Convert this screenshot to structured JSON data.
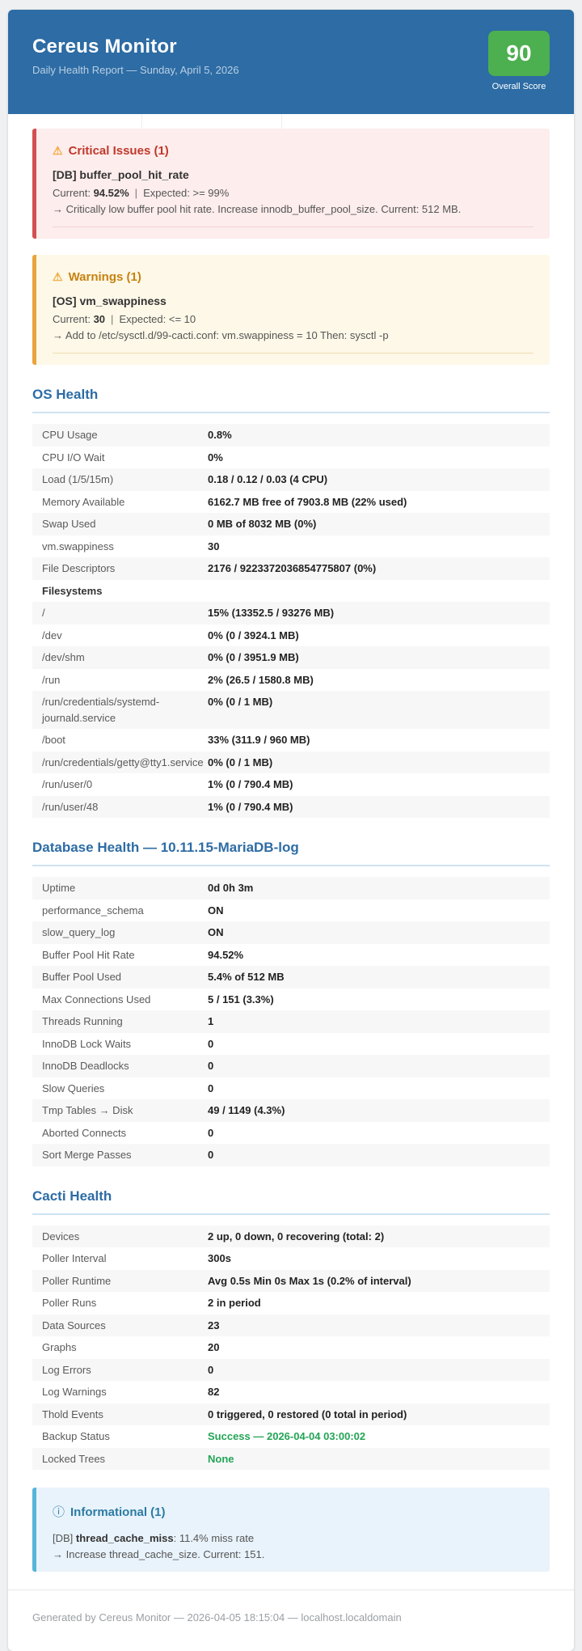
{
  "header": {
    "title": "Cereus Monitor",
    "subtitle": "Daily Health Report — Sunday, April 5, 2026",
    "score": "90",
    "score_label": "Overall Score"
  },
  "icons": {
    "warning_icon": "⚠",
    "info_icon": "ⓘ"
  },
  "critical": {
    "title": "Critical Issues (1)",
    "item_name": "[DB] buffer_pool_hit_rate",
    "current_label": "Current: ",
    "current_value": "94.52%",
    "separator": "|",
    "expected_text": "Expected: >= 99%",
    "detail": "→ Critically low buffer pool hit rate. Increase innodb_buffer_pool_size. Current: 512 MB."
  },
  "warning": {
    "title": "Warnings (1)",
    "item_name": "[OS] vm_swappiness",
    "current_label": "Current: ",
    "current_value": "30",
    "separator": "|",
    "expected_text": "Expected: <= 10",
    "detail": "→ Add to /etc/sysctl.d/99-cacti.conf: vm.swappiness = 10 Then: sysctl -p"
  },
  "info": {
    "title": "Informational (1)",
    "item_prefix": "[DB] ",
    "item_name": "thread_cache_miss",
    "item_rest": ": 11.4% miss rate",
    "detail": "→ Increase thread_cache_size. Current: 151."
  },
  "sections": [
    {
      "title": "OS Health",
      "rows": [
        {
          "label": "CPU Usage",
          "value": "0.8%",
          "style": ""
        },
        {
          "label": "CPU I/O Wait",
          "value": "0%",
          "style": ""
        },
        {
          "label": "Load (1/5/15m)",
          "value": "0.18 / 0.12 / 0.03 (4 CPU)",
          "style": ""
        },
        {
          "label": "Memory Available",
          "value": "6162.7 MB free of 7903.8 MB (22% used)",
          "style": ""
        },
        {
          "label": "Swap Used",
          "value": "0 MB of 8032 MB (0%)",
          "style": ""
        },
        {
          "label": "vm.swappiness",
          "value": "30",
          "style": ""
        },
        {
          "label": "File Descriptors",
          "value": "2176 / 9223372036854775807 (0%)",
          "style": ""
        },
        {
          "label": "Filesystems",
          "value": "",
          "style": "subheader"
        },
        {
          "label": "/",
          "value": "15%  (13352.5 / 93276 MB)",
          "style": ""
        },
        {
          "label": "/dev",
          "value": "0%  (0 / 3924.1 MB)",
          "style": ""
        },
        {
          "label": "/dev/shm",
          "value": "0%  (0 / 3951.9 MB)",
          "style": ""
        },
        {
          "label": "/run",
          "value": "2%  (26.5 / 1580.8 MB)",
          "style": ""
        },
        {
          "label": "/run/credentials/systemd-journald.service",
          "value": "0%  (0 / 1 MB)",
          "style": ""
        },
        {
          "label": "/boot",
          "value": "33%  (311.9 / 960 MB)",
          "style": ""
        },
        {
          "label": "/run/credentials/getty@tty1.service",
          "value": "0%  (0 / 1 MB)",
          "style": ""
        },
        {
          "label": "/run/user/0",
          "value": "1%  (0 / 790.4 MB)",
          "style": ""
        },
        {
          "label": "/run/user/48",
          "value": "1%  (0 / 790.4 MB)",
          "style": ""
        }
      ]
    },
    {
      "title": "Database Health — 10.11.15-MariaDB-log",
      "rows": [
        {
          "label": "Uptime",
          "value": "0d 0h 3m",
          "style": ""
        },
        {
          "label": "performance_schema",
          "value": "ON",
          "style": ""
        },
        {
          "label": "slow_query_log",
          "value": "ON",
          "style": ""
        },
        {
          "label": "Buffer Pool Hit Rate",
          "value": "94.52%",
          "style": ""
        },
        {
          "label": "Buffer Pool Used",
          "value": "5.4% of 512 MB",
          "style": ""
        },
        {
          "label": "Max Connections Used",
          "value": "5 / 151 (3.3%)",
          "style": ""
        },
        {
          "label": "Threads Running",
          "value": "1",
          "style": ""
        },
        {
          "label": "InnoDB Lock Waits",
          "value": "0",
          "style": ""
        },
        {
          "label": "InnoDB Deadlocks",
          "value": "0",
          "style": ""
        },
        {
          "label": "Slow Queries",
          "value": "0",
          "style": ""
        },
        {
          "label": "Tmp Tables → Disk",
          "value": "49 / 1149 (4.3%)",
          "style": ""
        },
        {
          "label": "Aborted Connects",
          "value": "0",
          "style": ""
        },
        {
          "label": "Sort Merge Passes",
          "value": "0",
          "style": ""
        }
      ]
    },
    {
      "title": "Cacti Health",
      "rows": [
        {
          "label": "Devices",
          "value": "2 up, 0 down, 0 recovering (total: 2)",
          "style": ""
        },
        {
          "label": "Poller Interval",
          "value": "300s",
          "style": ""
        },
        {
          "label": "Poller Runtime",
          "value": "Avg 0.5s Min 0s Max 1s (0.2% of interval)",
          "style": ""
        },
        {
          "label": "Poller Runs",
          "value": "2 in period",
          "style": ""
        },
        {
          "label": "Data Sources",
          "value": "23",
          "style": ""
        },
        {
          "label": "Graphs",
          "value": "20",
          "style": ""
        },
        {
          "label": "Log Errors",
          "value": "0",
          "style": ""
        },
        {
          "label": "Log Warnings",
          "value": "82",
          "style": ""
        },
        {
          "label": "Thold Events",
          "value": "0 triggered, 0 restored (0 total in period)",
          "style": ""
        },
        {
          "label": "Backup Status",
          "value": "Success — 2026-04-04 03:00:02",
          "style": "success"
        },
        {
          "label": "Locked Trees",
          "value": "None",
          "style": "success"
        }
      ]
    }
  ],
  "footer": {
    "text": "Generated by Cereus Monitor — 2026-04-05 18:15:04 — localhost.localdomain"
  },
  "colors": {
    "header_blue": "#2d6ca4",
    "score_green": "#4caf50",
    "critical_red": "#c0392b",
    "warning_orange": "#c8820f",
    "info_blue": "#2b7ba3",
    "success_green": "#23a456"
  }
}
